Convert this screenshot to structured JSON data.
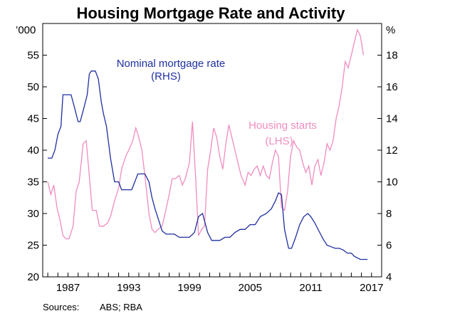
{
  "chart_data": {
    "type": "line",
    "title": "Housing Mortgage Rate and Activity",
    "left_axis_unit": "’000",
    "right_axis_unit": "%",
    "left_ylim": [
      20,
      60
    ],
    "left_yticks": [
      20,
      25,
      30,
      35,
      40,
      45,
      50,
      55
    ],
    "right_ylim": [
      4,
      20
    ],
    "right_yticks": [
      4,
      6,
      8,
      10,
      12,
      14,
      16,
      18
    ],
    "xlim": [
      1984.5,
      2018
    ],
    "xticks": [
      1987,
      1993,
      1999,
      2005,
      2011,
      2017
    ],
    "grid": false,
    "series": [
      {
        "name": "Nominal mortgage rate",
        "axis": "right",
        "unit_note": "(RHS)",
        "color": "#1f2fa0",
        "x": [
          1985.0,
          1985.4,
          1985.7,
          1986.0,
          1986.3,
          1986.5,
          1986.8,
          1987.3,
          1987.6,
          1988.0,
          1988.2,
          1988.5,
          1988.9,
          1989.1,
          1989.3,
          1989.5,
          1989.7,
          1990.0,
          1990.3,
          1990.5,
          1990.8,
          1991.0,
          1991.2,
          1991.6,
          1992.0,
          1992.3,
          1992.7,
          1993.0,
          1993.3,
          1993.6,
          1993.9,
          1994.3,
          1994.6,
          1995.0,
          1995.3,
          1995.6,
          1996.0,
          1996.3,
          1996.7,
          1997.0,
          1997.5,
          1998.0,
          1998.5,
          1999.0,
          1999.5,
          1999.9,
          2000.3,
          2000.8,
          2001.2,
          2001.6,
          2002.0,
          2002.5,
          2003.0,
          2003.5,
          2004.0,
          2004.5,
          2005.0,
          2005.5,
          2006.0,
          2006.6,
          2007.1,
          2007.5,
          2007.8,
          2008.1,
          2008.4,
          2008.8,
          2009.1,
          2009.5,
          2009.9,
          2010.3,
          2010.7,
          2011.0,
          2011.4,
          2011.8,
          2012.2,
          2012.6,
          2013.0,
          2013.4,
          2013.8,
          2014.2,
          2014.6,
          2015.0,
          2015.3,
          2015.6,
          2015.9,
          2016.2,
          2016.6
        ],
        "values": [
          11.5,
          11.5,
          12.0,
          13.0,
          13.5,
          15.5,
          15.5,
          15.5,
          14.8,
          13.8,
          13.8,
          14.5,
          15.5,
          16.8,
          17.0,
          17.0,
          17.0,
          16.5,
          15.0,
          14.3,
          13.5,
          12.5,
          11.5,
          10.0,
          10.0,
          9.5,
          9.5,
          9.5,
          9.5,
          10.0,
          10.5,
          10.5,
          10.5,
          10.0,
          9.0,
          8.3,
          7.5,
          6.9,
          6.7,
          6.7,
          6.7,
          6.5,
          6.5,
          6.5,
          6.8,
          7.8,
          8.0,
          6.8,
          6.3,
          6.3,
          6.3,
          6.5,
          6.5,
          6.8,
          7.0,
          7.0,
          7.3,
          7.3,
          7.8,
          8.0,
          8.3,
          8.8,
          9.3,
          9.2,
          7.0,
          5.8,
          5.8,
          6.5,
          7.3,
          7.8,
          8.0,
          7.8,
          7.4,
          6.9,
          6.4,
          6.0,
          5.9,
          5.8,
          5.8,
          5.7,
          5.5,
          5.5,
          5.3,
          5.2,
          5.1,
          5.1,
          5.1
        ]
      },
      {
        "name": "Housing starts",
        "axis": "left",
        "unit_note": "(LHS)",
        "color": "#f08cc0",
        "x": [
          1985.0,
          1985.3,
          1985.6,
          1985.9,
          1986.2,
          1986.5,
          1986.8,
          1987.1,
          1987.5,
          1987.8,
          1988.1,
          1988.5,
          1988.8,
          1989.1,
          1989.4,
          1989.8,
          1990.1,
          1990.5,
          1990.9,
          1991.2,
          1991.6,
          1992.0,
          1992.3,
          1992.7,
          1993.0,
          1993.4,
          1993.7,
          1994.0,
          1994.3,
          1994.6,
          1995.0,
          1995.3,
          1995.6,
          1995.9,
          1996.3,
          1996.6,
          1997.0,
          1997.3,
          1997.6,
          1998.0,
          1998.3,
          1998.6,
          1999.0,
          1999.3,
          1999.6,
          1999.9,
          2000.2,
          2000.5,
          2000.8,
          2001.1,
          2001.4,
          2001.7,
          2002.0,
          2002.3,
          2002.6,
          2002.9,
          2003.2,
          2003.5,
          2003.8,
          2004.1,
          2004.5,
          2004.8,
          2005.1,
          2005.4,
          2005.7,
          2006.0,
          2006.3,
          2006.6,
          2006.9,
          2007.2,
          2007.5,
          2007.8,
          2008.1,
          2008.4,
          2008.7,
          2009.0,
          2009.3,
          2009.6,
          2009.9,
          2010.2,
          2010.5,
          2010.8,
          2011.1,
          2011.4,
          2011.7,
          2012.0,
          2012.3,
          2012.6,
          2012.9,
          2013.2,
          2013.5,
          2013.8,
          2014.1,
          2014.4,
          2014.7,
          2015.0,
          2015.3,
          2015.6,
          2015.9,
          2016.2
        ],
        "values": [
          35.0,
          33.0,
          34.5,
          31.0,
          29.0,
          26.5,
          26.0,
          26.0,
          28.0,
          33.5,
          35.0,
          41.0,
          41.5,
          36.0,
          30.5,
          30.5,
          28.0,
          28.0,
          28.5,
          29.5,
          32.0,
          34.0,
          37.0,
          39.0,
          40.0,
          41.5,
          43.5,
          42.0,
          40.0,
          36.0,
          30.0,
          27.5,
          27.0,
          27.5,
          28.0,
          30.0,
          33.0,
          35.5,
          35.5,
          36.0,
          34.5,
          35.5,
          38.0,
          44.5,
          36.0,
          26.5,
          27.5,
          28.0,
          37.0,
          40.0,
          43.5,
          42.0,
          39.0,
          37.0,
          41.0,
          44.0,
          42.0,
          40.0,
          38.0,
          36.0,
          34.5,
          36.5,
          36.0,
          37.0,
          37.5,
          36.0,
          37.5,
          36.0,
          35.5,
          38.0,
          40.0,
          39.0,
          31.0,
          30.5,
          33.5,
          39.0,
          41.5,
          40.5,
          40.0,
          38.0,
          36.5,
          37.5,
          34.5,
          37.5,
          38.5,
          36.0,
          38.0,
          41.0,
          40.0,
          41.5,
          45.0,
          47.0,
          50.0,
          54.0,
          53.0,
          55.0,
          57.0,
          59.0,
          58.0,
          55.0
        ]
      }
    ],
    "annotations": {
      "rate_label": "Nominal mortgage rate",
      "rate_note": "(RHS)",
      "starts_label": "Housing starts",
      "starts_note": "(LHS)"
    }
  },
  "footer": {
    "sources_label": "Sources:",
    "sources_text": "ABS; RBA"
  }
}
